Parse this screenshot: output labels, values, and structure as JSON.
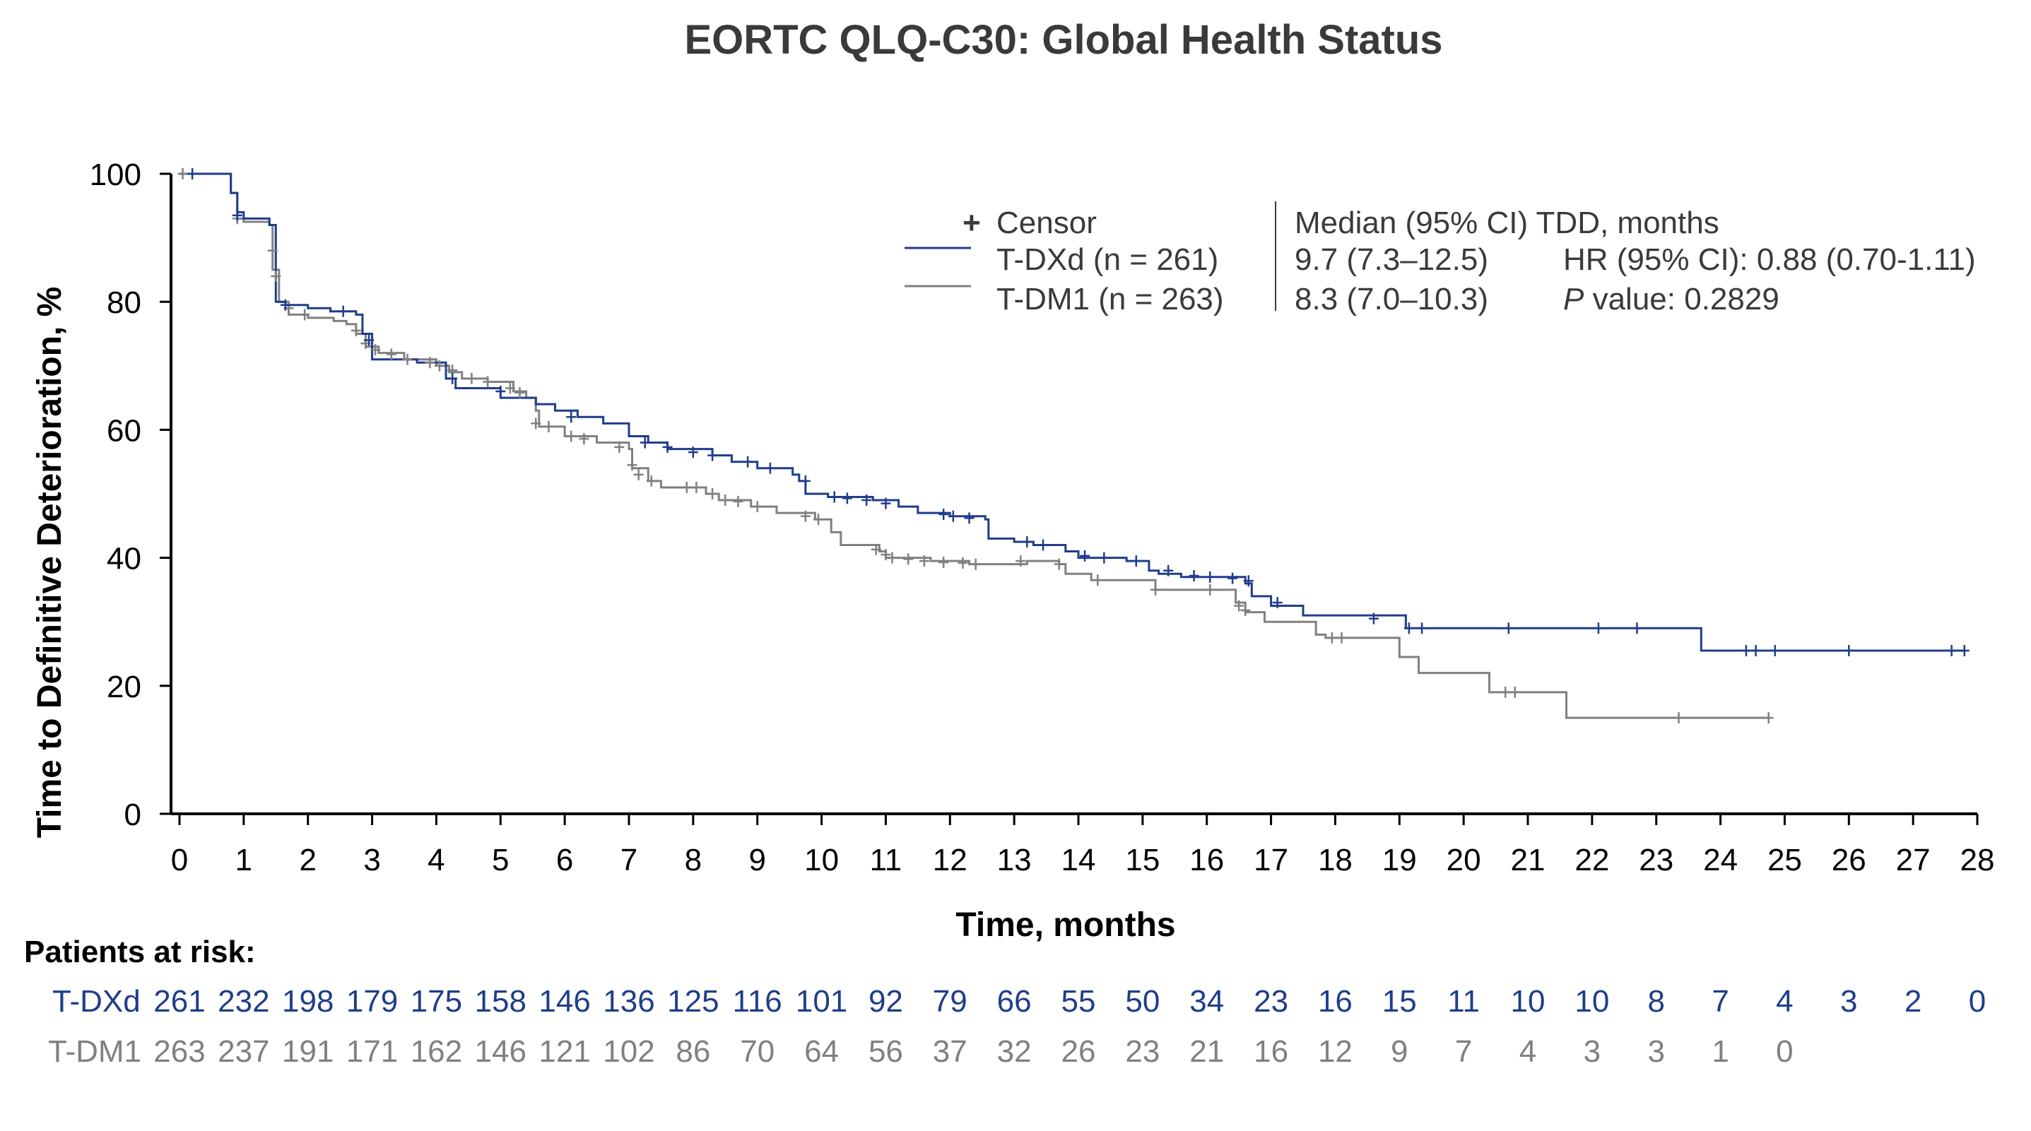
{
  "chart_data": {
    "type": "line",
    "title": "EORTC QLQ-C30: Global Health Status",
    "xlabel": "Time, months",
    "ylabel": "Time to Definitive Deterioration, %",
    "xlim": [
      0,
      28
    ],
    "ylim": [
      0,
      100
    ],
    "x_ticks": [
      0,
      1,
      2,
      3,
      4,
      5,
      6,
      7,
      8,
      9,
      10,
      11,
      12,
      13,
      14,
      15,
      16,
      17,
      18,
      19,
      20,
      21,
      22,
      23,
      24,
      25,
      26,
      27,
      28
    ],
    "y_ticks": [
      0,
      20,
      40,
      60,
      80,
      100
    ],
    "legend": {
      "censor_label": "Censor",
      "series_labels": [
        "T-DXd (n = 261)",
        "T-DM1 (n = 263)"
      ],
      "stats_header": "Median (95% CI) TDD, months",
      "medians": [
        "9.7 (7.3–12.5)",
        "8.3 (7.0–10.3)"
      ],
      "hr_text": "HR (95% CI): 0.88 (0.70-1.11)",
      "p_label": "P",
      "p_text": " value: 0.2829"
    },
    "series": [
      {
        "name": "T-DXd",
        "color": "#1f3d8a",
        "steps": [
          [
            0,
            100
          ],
          [
            0.75,
            100
          ],
          [
            0.8,
            97
          ],
          [
            0.9,
            94
          ],
          [
            1.0,
            93
          ],
          [
            1.4,
            92
          ],
          [
            1.5,
            80
          ],
          [
            1.65,
            79.5
          ],
          [
            2.0,
            79
          ],
          [
            2.35,
            78.5
          ],
          [
            2.75,
            78
          ],
          [
            2.85,
            75
          ],
          [
            3.0,
            71
          ],
          [
            3.7,
            70.5
          ],
          [
            4.15,
            68
          ],
          [
            4.3,
            66.5
          ],
          [
            5.0,
            65
          ],
          [
            5.55,
            64
          ],
          [
            5.85,
            63
          ],
          [
            6.2,
            62
          ],
          [
            6.6,
            61
          ],
          [
            7.0,
            59
          ],
          [
            7.3,
            58
          ],
          [
            7.6,
            57
          ],
          [
            8.3,
            56
          ],
          [
            8.6,
            55
          ],
          [
            9.0,
            54
          ],
          [
            9.55,
            53
          ],
          [
            9.65,
            52
          ],
          [
            9.75,
            50
          ],
          [
            10.1,
            49.5
          ],
          [
            10.8,
            49
          ],
          [
            11.2,
            48
          ],
          [
            11.5,
            47
          ],
          [
            12.0,
            46.5
          ],
          [
            12.55,
            46
          ],
          [
            12.6,
            43
          ],
          [
            13.0,
            42.5
          ],
          [
            13.3,
            42
          ],
          [
            13.8,
            41
          ],
          [
            14.0,
            40
          ],
          [
            14.75,
            39.5
          ],
          [
            15.1,
            38
          ],
          [
            15.25,
            37.5
          ],
          [
            15.6,
            37
          ],
          [
            16.6,
            36
          ],
          [
            16.7,
            34
          ],
          [
            17.0,
            32.5
          ],
          [
            17.5,
            31
          ],
          [
            19.1,
            29
          ],
          [
            23.7,
            29
          ],
          [
            23.7,
            25.5
          ],
          [
            27.8,
            25.5
          ]
        ],
        "censors": [
          [
            0.2,
            100
          ],
          [
            0.9,
            93.5
          ],
          [
            1.65,
            79.5
          ],
          [
            2.55,
            78.5
          ],
          [
            2.95,
            74
          ],
          [
            4.25,
            68
          ],
          [
            5.0,
            66
          ],
          [
            6.1,
            62
          ],
          [
            7.25,
            58
          ],
          [
            7.6,
            57.3
          ],
          [
            8.0,
            56.5
          ],
          [
            8.3,
            56
          ],
          [
            8.85,
            55
          ],
          [
            9.2,
            54
          ],
          [
            9.75,
            52
          ],
          [
            10.2,
            49.5
          ],
          [
            10.4,
            49.3
          ],
          [
            10.7,
            49
          ],
          [
            11.0,
            48.5
          ],
          [
            11.9,
            46.8
          ],
          [
            12.05,
            46.5
          ],
          [
            12.3,
            46.2
          ],
          [
            13.2,
            42.5
          ],
          [
            13.45,
            42
          ],
          [
            14.1,
            40.3
          ],
          [
            14.4,
            40
          ],
          [
            14.9,
            39.5
          ],
          [
            15.4,
            38
          ],
          [
            15.8,
            37.2
          ],
          [
            16.05,
            37
          ],
          [
            16.4,
            36.8
          ],
          [
            16.65,
            36.4
          ],
          [
            17.1,
            33
          ],
          [
            18.6,
            30.5
          ],
          [
            19.15,
            29
          ],
          [
            19.35,
            29
          ],
          [
            20.7,
            29
          ],
          [
            22.1,
            29
          ],
          [
            22.7,
            29
          ],
          [
            24.4,
            25.5
          ],
          [
            24.55,
            25.5
          ],
          [
            24.85,
            25.5
          ],
          [
            26.0,
            25.5
          ],
          [
            27.6,
            25.5
          ],
          [
            27.8,
            25.5
          ]
        ]
      },
      {
        "name": "T-DM1",
        "color": "#808080",
        "steps": [
          [
            0,
            100
          ],
          [
            0.75,
            100
          ],
          [
            0.8,
            97
          ],
          [
            0.9,
            93
          ],
          [
            1.0,
            92.5
          ],
          [
            1.4,
            92
          ],
          [
            1.45,
            85
          ],
          [
            1.55,
            80
          ],
          [
            1.7,
            78
          ],
          [
            2.0,
            77.5
          ],
          [
            2.4,
            77
          ],
          [
            2.6,
            76.5
          ],
          [
            2.75,
            75
          ],
          [
            2.9,
            73
          ],
          [
            3.1,
            72
          ],
          [
            3.5,
            71
          ],
          [
            4.0,
            70
          ],
          [
            4.2,
            69
          ],
          [
            4.4,
            68
          ],
          [
            4.8,
            67.5
          ],
          [
            5.2,
            66
          ],
          [
            5.4,
            65
          ],
          [
            5.55,
            63
          ],
          [
            5.6,
            60.5
          ],
          [
            6.0,
            59
          ],
          [
            6.5,
            58
          ],
          [
            7.0,
            57
          ],
          [
            7.05,
            54
          ],
          [
            7.3,
            52
          ],
          [
            7.5,
            51
          ],
          [
            8.2,
            50
          ],
          [
            8.4,
            49
          ],
          [
            8.9,
            48
          ],
          [
            9.3,
            47
          ],
          [
            9.9,
            46
          ],
          [
            10.15,
            44
          ],
          [
            10.3,
            42
          ],
          [
            10.9,
            41
          ],
          [
            11.0,
            40
          ],
          [
            11.7,
            39.5
          ],
          [
            12.3,
            39
          ],
          [
            13.2,
            39.5
          ],
          [
            13.7,
            39
          ],
          [
            13.8,
            37.5
          ],
          [
            14.2,
            36.5
          ],
          [
            15.2,
            35
          ],
          [
            16.45,
            35
          ],
          [
            16.45,
            33
          ],
          [
            16.6,
            31.5
          ],
          [
            16.9,
            30
          ],
          [
            17.7,
            28
          ],
          [
            17.85,
            27.5
          ],
          [
            19.0,
            27.5
          ],
          [
            19.0,
            24.5
          ],
          [
            19.3,
            22
          ],
          [
            20.4,
            22
          ],
          [
            20.4,
            19
          ],
          [
            21.6,
            19
          ],
          [
            21.6,
            15
          ],
          [
            24.75,
            15
          ]
        ],
        "censors": [
          [
            0.05,
            100
          ],
          [
            0.9,
            93
          ],
          [
            1.45,
            88
          ],
          [
            1.5,
            84
          ],
          [
            1.7,
            79
          ],
          [
            1.95,
            78
          ],
          [
            2.75,
            75.5
          ],
          [
            2.9,
            73.5
          ],
          [
            3.05,
            72.5
          ],
          [
            3.3,
            71.8
          ],
          [
            3.55,
            71
          ],
          [
            3.9,
            70.5
          ],
          [
            4.05,
            70
          ],
          [
            4.25,
            69.3
          ],
          [
            4.55,
            68
          ],
          [
            4.8,
            67.5
          ],
          [
            5.15,
            66.5
          ],
          [
            5.3,
            65.8
          ],
          [
            5.55,
            61
          ],
          [
            5.75,
            60.5
          ],
          [
            6.1,
            59
          ],
          [
            6.3,
            58.6
          ],
          [
            6.85,
            57.3
          ],
          [
            7.05,
            54.5
          ],
          [
            7.15,
            53
          ],
          [
            7.35,
            52
          ],
          [
            7.9,
            51
          ],
          [
            8.05,
            51
          ],
          [
            8.3,
            50
          ],
          [
            8.5,
            49
          ],
          [
            8.7,
            48.8
          ],
          [
            9.0,
            48
          ],
          [
            9.75,
            46.5
          ],
          [
            9.95,
            46
          ],
          [
            10.85,
            41.3
          ],
          [
            11.0,
            40.5
          ],
          [
            11.1,
            40
          ],
          [
            11.35,
            39.8
          ],
          [
            11.6,
            39.5
          ],
          [
            11.9,
            39.3
          ],
          [
            12.2,
            39.2
          ],
          [
            12.4,
            39
          ],
          [
            13.1,
            39.5
          ],
          [
            13.7,
            39
          ],
          [
            14.3,
            36.5
          ],
          [
            15.2,
            35
          ],
          [
            16.05,
            35
          ],
          [
            16.5,
            32.5
          ],
          [
            16.6,
            31.8
          ],
          [
            17.95,
            27.5
          ],
          [
            18.1,
            27.5
          ],
          [
            20.65,
            19
          ],
          [
            20.8,
            19
          ],
          [
            23.35,
            15
          ],
          [
            24.75,
            15
          ]
        ]
      }
    ],
    "risk_table": {
      "header": "Patients at risk:",
      "rows": [
        {
          "label": "T-DXd",
          "color": "#1f3d8a",
          "values": [
            "261",
            "232",
            "198",
            "179",
            "175",
            "158",
            "146",
            "136",
            "125",
            "116",
            "101",
            "92",
            "79",
            "66",
            "55",
            "50",
            "34",
            "23",
            "16",
            "15",
            "11",
            "10",
            "10",
            "8",
            "7",
            "4",
            "3",
            "2",
            "0"
          ]
        },
        {
          "label": "T-DM1",
          "color": "#808080",
          "values": [
            "263",
            "237",
            "191",
            "171",
            "162",
            "146",
            "121",
            "102",
            "86",
            "70",
            "64",
            "56",
            "37",
            "32",
            "26",
            "23",
            "21",
            "16",
            "12",
            "9",
            "7",
            "4",
            "3",
            "3",
            "1",
            "0"
          ]
        }
      ]
    }
  }
}
